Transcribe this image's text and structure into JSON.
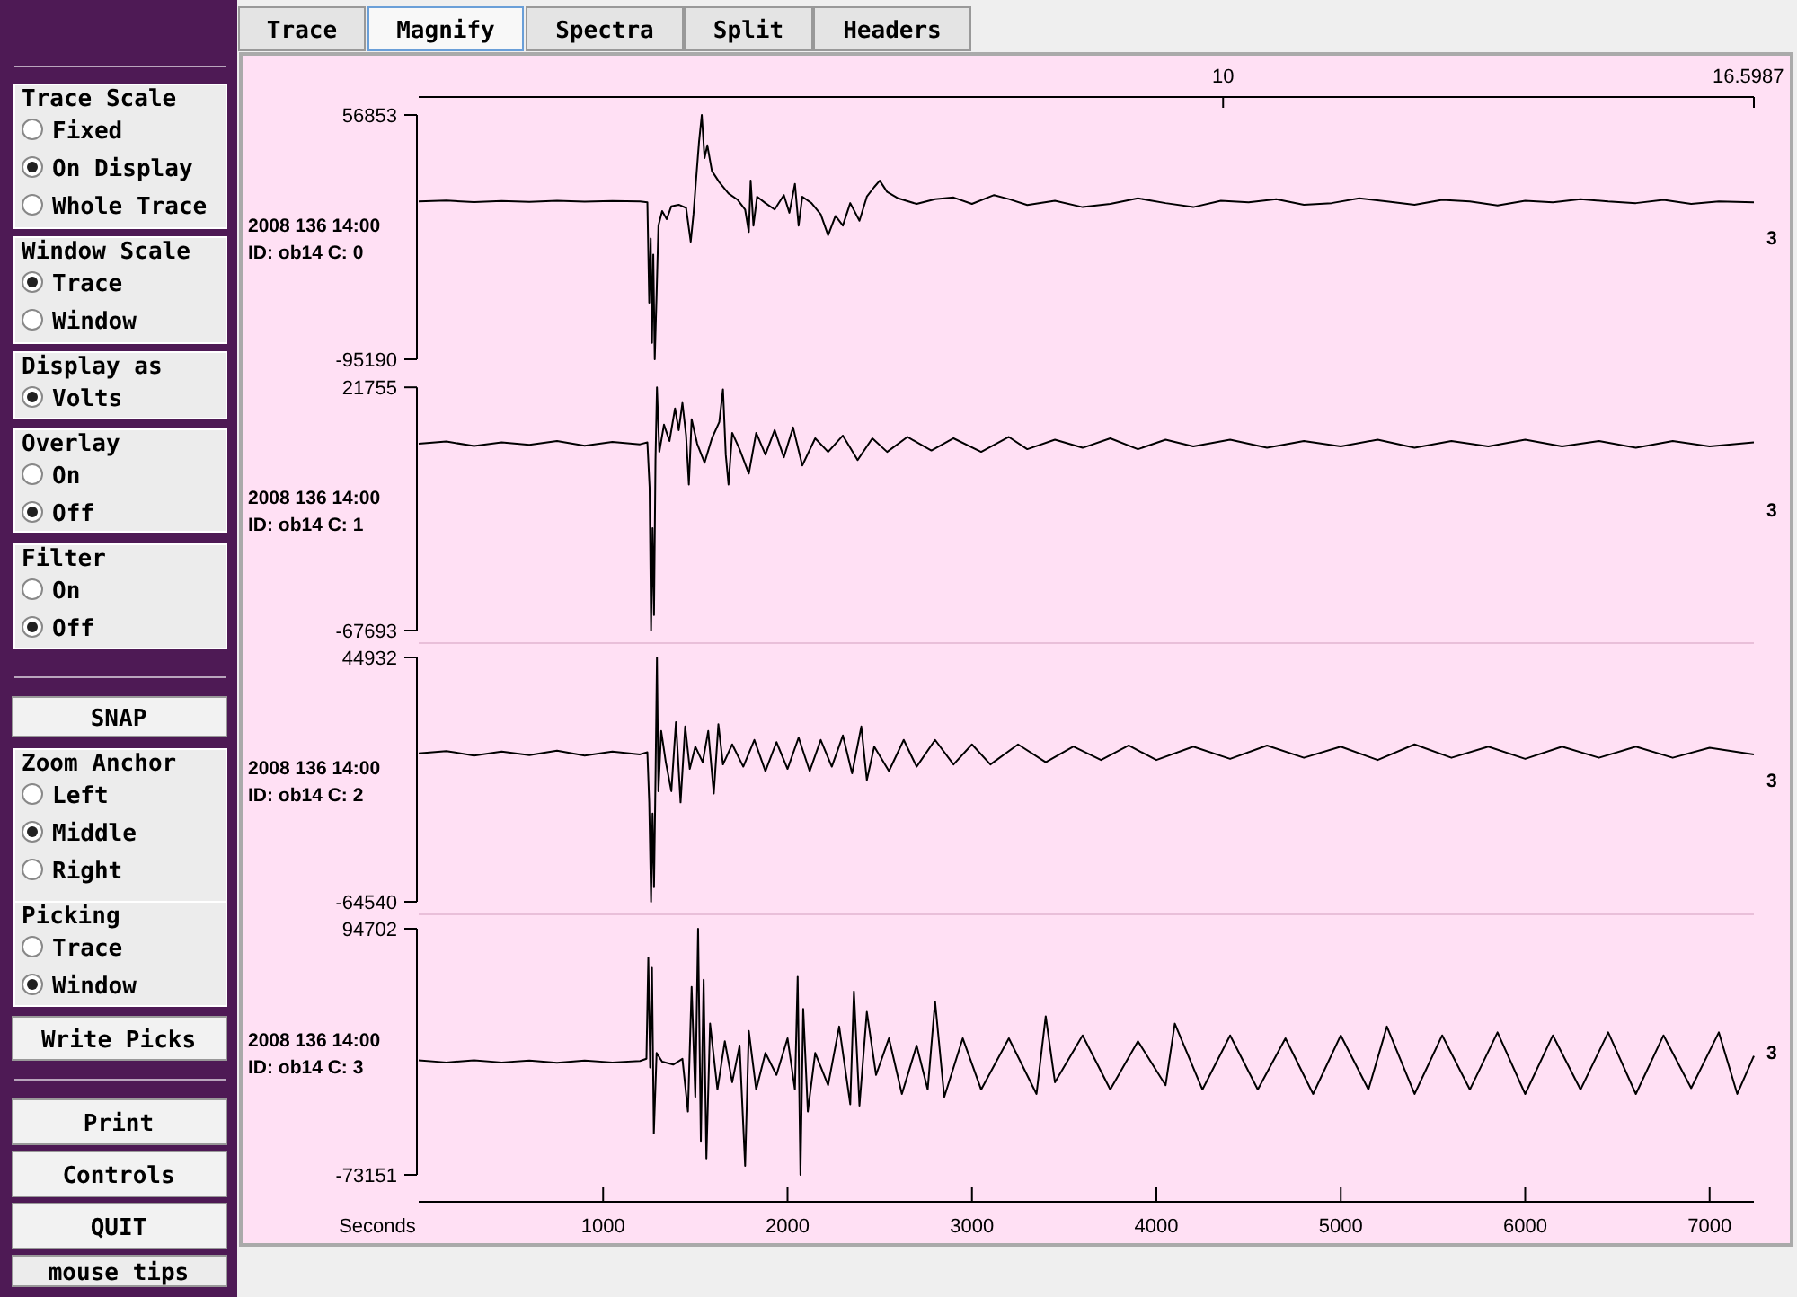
{
  "chart_data": [
    {
      "type": "other",
      "annotations": [
        "Trace Scale",
        "Fixed",
        "On Display",
        "Whole Trace",
        "Window Scale",
        "Trace",
        "Window",
        "Display as",
        "Volts",
        "Overlay",
        "On",
        "Off",
        "Filter",
        "On",
        "Off",
        "SNAP",
        "Zoom Anchor",
        "Left",
        "Middle",
        "Right",
        "Picking",
        "Trace",
        "Window",
        "Write Picks",
        "Print",
        "Controls",
        "QUIT",
        "mouse tips",
        "Trace",
        "Magnify",
        "Spectra",
        "Split",
        "Headers"
      ]
    },
    {
      "type": "line",
      "xlim": [
        0,
        7240
      ],
      "x2lim": [
        0,
        16.5987
      ],
      "x2ticks": [
        10,
        16.5987
      ],
      "ylim": [
        -95190,
        56853
      ],
      "yticks": [
        -95190,
        56853
      ],
      "tick_labels": "y",
      "annotations": [
        "2008 136 14:00",
        "ID: ob14 C: 0",
        "3"
      ],
      "series": [
        {
          "color": "#000000",
          "x": [
            0,
            150,
            300,
            450,
            600,
            750,
            900,
            1050,
            1200,
            1240,
            1250,
            1258,
            1265,
            1272,
            1280,
            1290,
            1300,
            1320,
            1345,
            1370,
            1410,
            1450,
            1475,
            1490,
            1505,
            1520,
            1535,
            1550,
            1565,
            1590,
            1630,
            1680,
            1730,
            1770,
            1790,
            1800,
            1815,
            1835,
            1880,
            1930,
            1980,
            2010,
            2040,
            2060,
            2080,
            2130,
            2180,
            2220,
            2260,
            2300,
            2340,
            2390,
            2430,
            2470,
            2500,
            2540,
            2600,
            2700,
            2800,
            2900,
            3000,
            3120,
            3200,
            3300,
            3450,
            3600,
            3750,
            3900,
            4050,
            4200,
            4350,
            4500,
            4650,
            4800,
            4950,
            5100,
            5250,
            5400,
            5550,
            5700,
            5850,
            6000,
            6150,
            6300,
            6450,
            6600,
            6750,
            6900,
            7050,
            7240
          ],
          "values": [
            3000,
            3600,
            2600,
            3300,
            2800,
            3500,
            2900,
            3400,
            3000,
            2500,
            -60000,
            -20000,
            -85000,
            -30000,
            -95190,
            -55000,
            -12000,
            -3000,
            -8000,
            0,
            1000,
            -1000,
            -22000,
            -5000,
            18000,
            40000,
            56853,
            30000,
            38000,
            22000,
            15000,
            8000,
            4000,
            -2000,
            -16000,
            16000,
            -12000,
            6000,
            2000,
            -2000,
            7000,
            -4000,
            14000,
            -12000,
            6000,
            2000,
            -5000,
            -18000,
            -6000,
            -12000,
            2000,
            -9000,
            6000,
            12000,
            16000,
            9000,
            5000,
            1500,
            4500,
            5500,
            1500,
            7000,
            4500,
            800,
            3500,
            -500,
            1500,
            5000,
            2000,
            -500,
            3500,
            2500,
            4500,
            1000,
            2000,
            5000,
            3000,
            1000,
            4000,
            3000,
            500,
            3500,
            2500,
            4500,
            3000,
            2000,
            4000,
            1500,
            3000,
            2500
          ]
        }
      ]
    },
    {
      "type": "line",
      "xlim": [
        0,
        7240
      ],
      "ylim": [
        -67693,
        21755
      ],
      "yticks": [
        -67693,
        21755
      ],
      "tick_labels": "y",
      "annotations": [
        "2008 136 14:00",
        "ID: ob14 C: 1",
        "3"
      ],
      "series": [
        {
          "color": "#000000",
          "x": [
            0,
            150,
            300,
            450,
            600,
            750,
            900,
            1050,
            1200,
            1240,
            1252,
            1260,
            1268,
            1276,
            1284,
            1292,
            1305,
            1330,
            1360,
            1390,
            1410,
            1430,
            1450,
            1465,
            1480,
            1510,
            1550,
            1590,
            1630,
            1650,
            1665,
            1680,
            1700,
            1740,
            1790,
            1830,
            1880,
            1930,
            1980,
            2030,
            2080,
            2150,
            2220,
            2300,
            2380,
            2460,
            2540,
            2650,
            2780,
            2900,
            3050,
            3200,
            3300,
            3450,
            3600,
            3750,
            3900,
            4050,
            4200,
            4400,
            4600,
            4800,
            5000,
            5200,
            5400,
            5600,
            5800,
            6000,
            6200,
            6400,
            6600,
            6800,
            7000,
            7240
          ],
          "values": [
            1000,
            1800,
            200,
            1500,
            600,
            2000,
            300,
            1700,
            800,
            1500,
            -15000,
            -67693,
            -30000,
            -62000,
            -5000,
            21755,
            -2000,
            8000,
            2000,
            14000,
            6000,
            16000,
            4000,
            -14000,
            10000,
            1000,
            -6000,
            3000,
            9000,
            21000,
            -3000,
            -14000,
            5000,
            -1000,
            -10000,
            5000,
            -3000,
            6000,
            -4000,
            7000,
            -7000,
            3000,
            -2000,
            4000,
            -5000,
            3000,
            -2000,
            3500,
            -1500,
            3000,
            -2000,
            3500,
            -1000,
            2500,
            -500,
            3000,
            -1000,
            2500,
            0,
            2500,
            -500,
            2000,
            0,
            2500,
            -500,
            2000,
            0,
            2500,
            0,
            2000,
            -500,
            2000,
            0,
            1500
          ]
        }
      ]
    },
    {
      "type": "line",
      "xlim": [
        0,
        7240
      ],
      "ylim": [
        -64540,
        44932
      ],
      "yticks": [
        -64540,
        44932
      ],
      "tick_labels": "y",
      "annotations": [
        "2008 136 14:00",
        "ID: ob14 C: 2",
        "3"
      ],
      "series": [
        {
          "color": "#000000",
          "x": [
            0,
            150,
            300,
            450,
            600,
            750,
            900,
            1050,
            1200,
            1240,
            1250,
            1260,
            1268,
            1276,
            1284,
            1292,
            1300,
            1315,
            1340,
            1370,
            1395,
            1420,
            1445,
            1470,
            1500,
            1540,
            1570,
            1600,
            1625,
            1650,
            1700,
            1760,
            1820,
            1880,
            1940,
            2000,
            2060,
            2120,
            2180,
            2240,
            2300,
            2350,
            2400,
            2430,
            2470,
            2550,
            2630,
            2700,
            2800,
            2900,
            3000,
            3100,
            3250,
            3400,
            3550,
            3700,
            3850,
            4000,
            4200,
            4400,
            4600,
            4800,
            5000,
            5200,
            5400,
            5600,
            5800,
            6000,
            6200,
            6400,
            6600,
            6800,
            7000,
            7240
          ],
          "values": [
            2000,
            3000,
            1000,
            2800,
            1200,
            3200,
            1000,
            2800,
            1500,
            2500,
            -20000,
            -64540,
            -25000,
            -58000,
            -10000,
            44932,
            -15000,
            12000,
            -2000,
            -15000,
            16000,
            -20000,
            14000,
            -5000,
            5000,
            -2000,
            12000,
            -16000,
            15000,
            -3000,
            6000,
            -4000,
            8000,
            -6000,
            7000,
            -5000,
            9000,
            -6000,
            8000,
            -4000,
            10000,
            -7000,
            14000,
            -10000,
            5000,
            -6000,
            8000,
            -4000,
            8000,
            -3000,
            6000,
            -3000,
            6000,
            -2000,
            5000,
            -1000,
            5500,
            -1000,
            5000,
            -500,
            5500,
            0,
            5000,
            -1000,
            6000,
            0,
            5000,
            -500,
            5000,
            0,
            5000,
            0,
            4500,
            1500
          ]
        }
      ]
    },
    {
      "type": "line",
      "xlim": [
        0,
        7240
      ],
      "xticks": [
        1000,
        2000,
        3000,
        4000,
        5000,
        6000,
        7000
      ],
      "xlabel": "Seconds",
      "ylim": [
        -73151,
        94702
      ],
      "yticks": [
        -73151,
        94702
      ],
      "annotations": [
        "2008 136 14:00",
        "ID: ob14 C: 3",
        "3"
      ],
      "series": [
        {
          "color": "#000000",
          "x": [
            0,
            150,
            300,
            450,
            600,
            750,
            900,
            1050,
            1200,
            1235,
            1245,
            1255,
            1265,
            1275,
            1290,
            1320,
            1380,
            1430,
            1460,
            1480,
            1500,
            1515,
            1530,
            1545,
            1560,
            1580,
            1620,
            1660,
            1700,
            1740,
            1770,
            1790,
            1830,
            1880,
            1940,
            2000,
            2040,
            2055,
            2070,
            2085,
            2110,
            2150,
            2220,
            2280,
            2340,
            2360,
            2390,
            2430,
            2480,
            2550,
            2620,
            2700,
            2760,
            2800,
            2850,
            2950,
            3050,
            3200,
            3350,
            3400,
            3450,
            3600,
            3750,
            3900,
            4050,
            4100,
            4250,
            4400,
            4550,
            4700,
            4850,
            5000,
            5150,
            5250,
            5400,
            5550,
            5700,
            5850,
            6000,
            6150,
            6300,
            6450,
            6600,
            6750,
            6900,
            7050,
            7150,
            7240
          ],
          "values": [
            5000,
            3500,
            5000,
            3500,
            4800,
            3200,
            4800,
            3500,
            4500,
            6000,
            75000,
            0,
            68000,
            -45000,
            10000,
            4000,
            2000,
            6000,
            -30000,
            55000,
            -20000,
            94702,
            -50000,
            60000,
            -62000,
            30000,
            -15000,
            18000,
            -10000,
            15000,
            -67000,
            25000,
            -15000,
            10000,
            -5000,
            20000,
            -15000,
            62000,
            -73151,
            40000,
            -30000,
            10000,
            -12000,
            28000,
            -25000,
            52000,
            -26000,
            38000,
            -5000,
            20000,
            -18000,
            15000,
            -15000,
            45000,
            -20000,
            20000,
            -15000,
            20000,
            -18000,
            35000,
            -10000,
            22000,
            -15000,
            18000,
            -12000,
            30000,
            -15000,
            22000,
            -15000,
            20000,
            -18000,
            22000,
            -15000,
            28000,
            -18000,
            22000,
            -15000,
            24000,
            -18000,
            22000,
            -15000,
            24000,
            -18000,
            22000,
            -14000,
            24000,
            -18000,
            8000
          ]
        }
      ]
    }
  ]
}
